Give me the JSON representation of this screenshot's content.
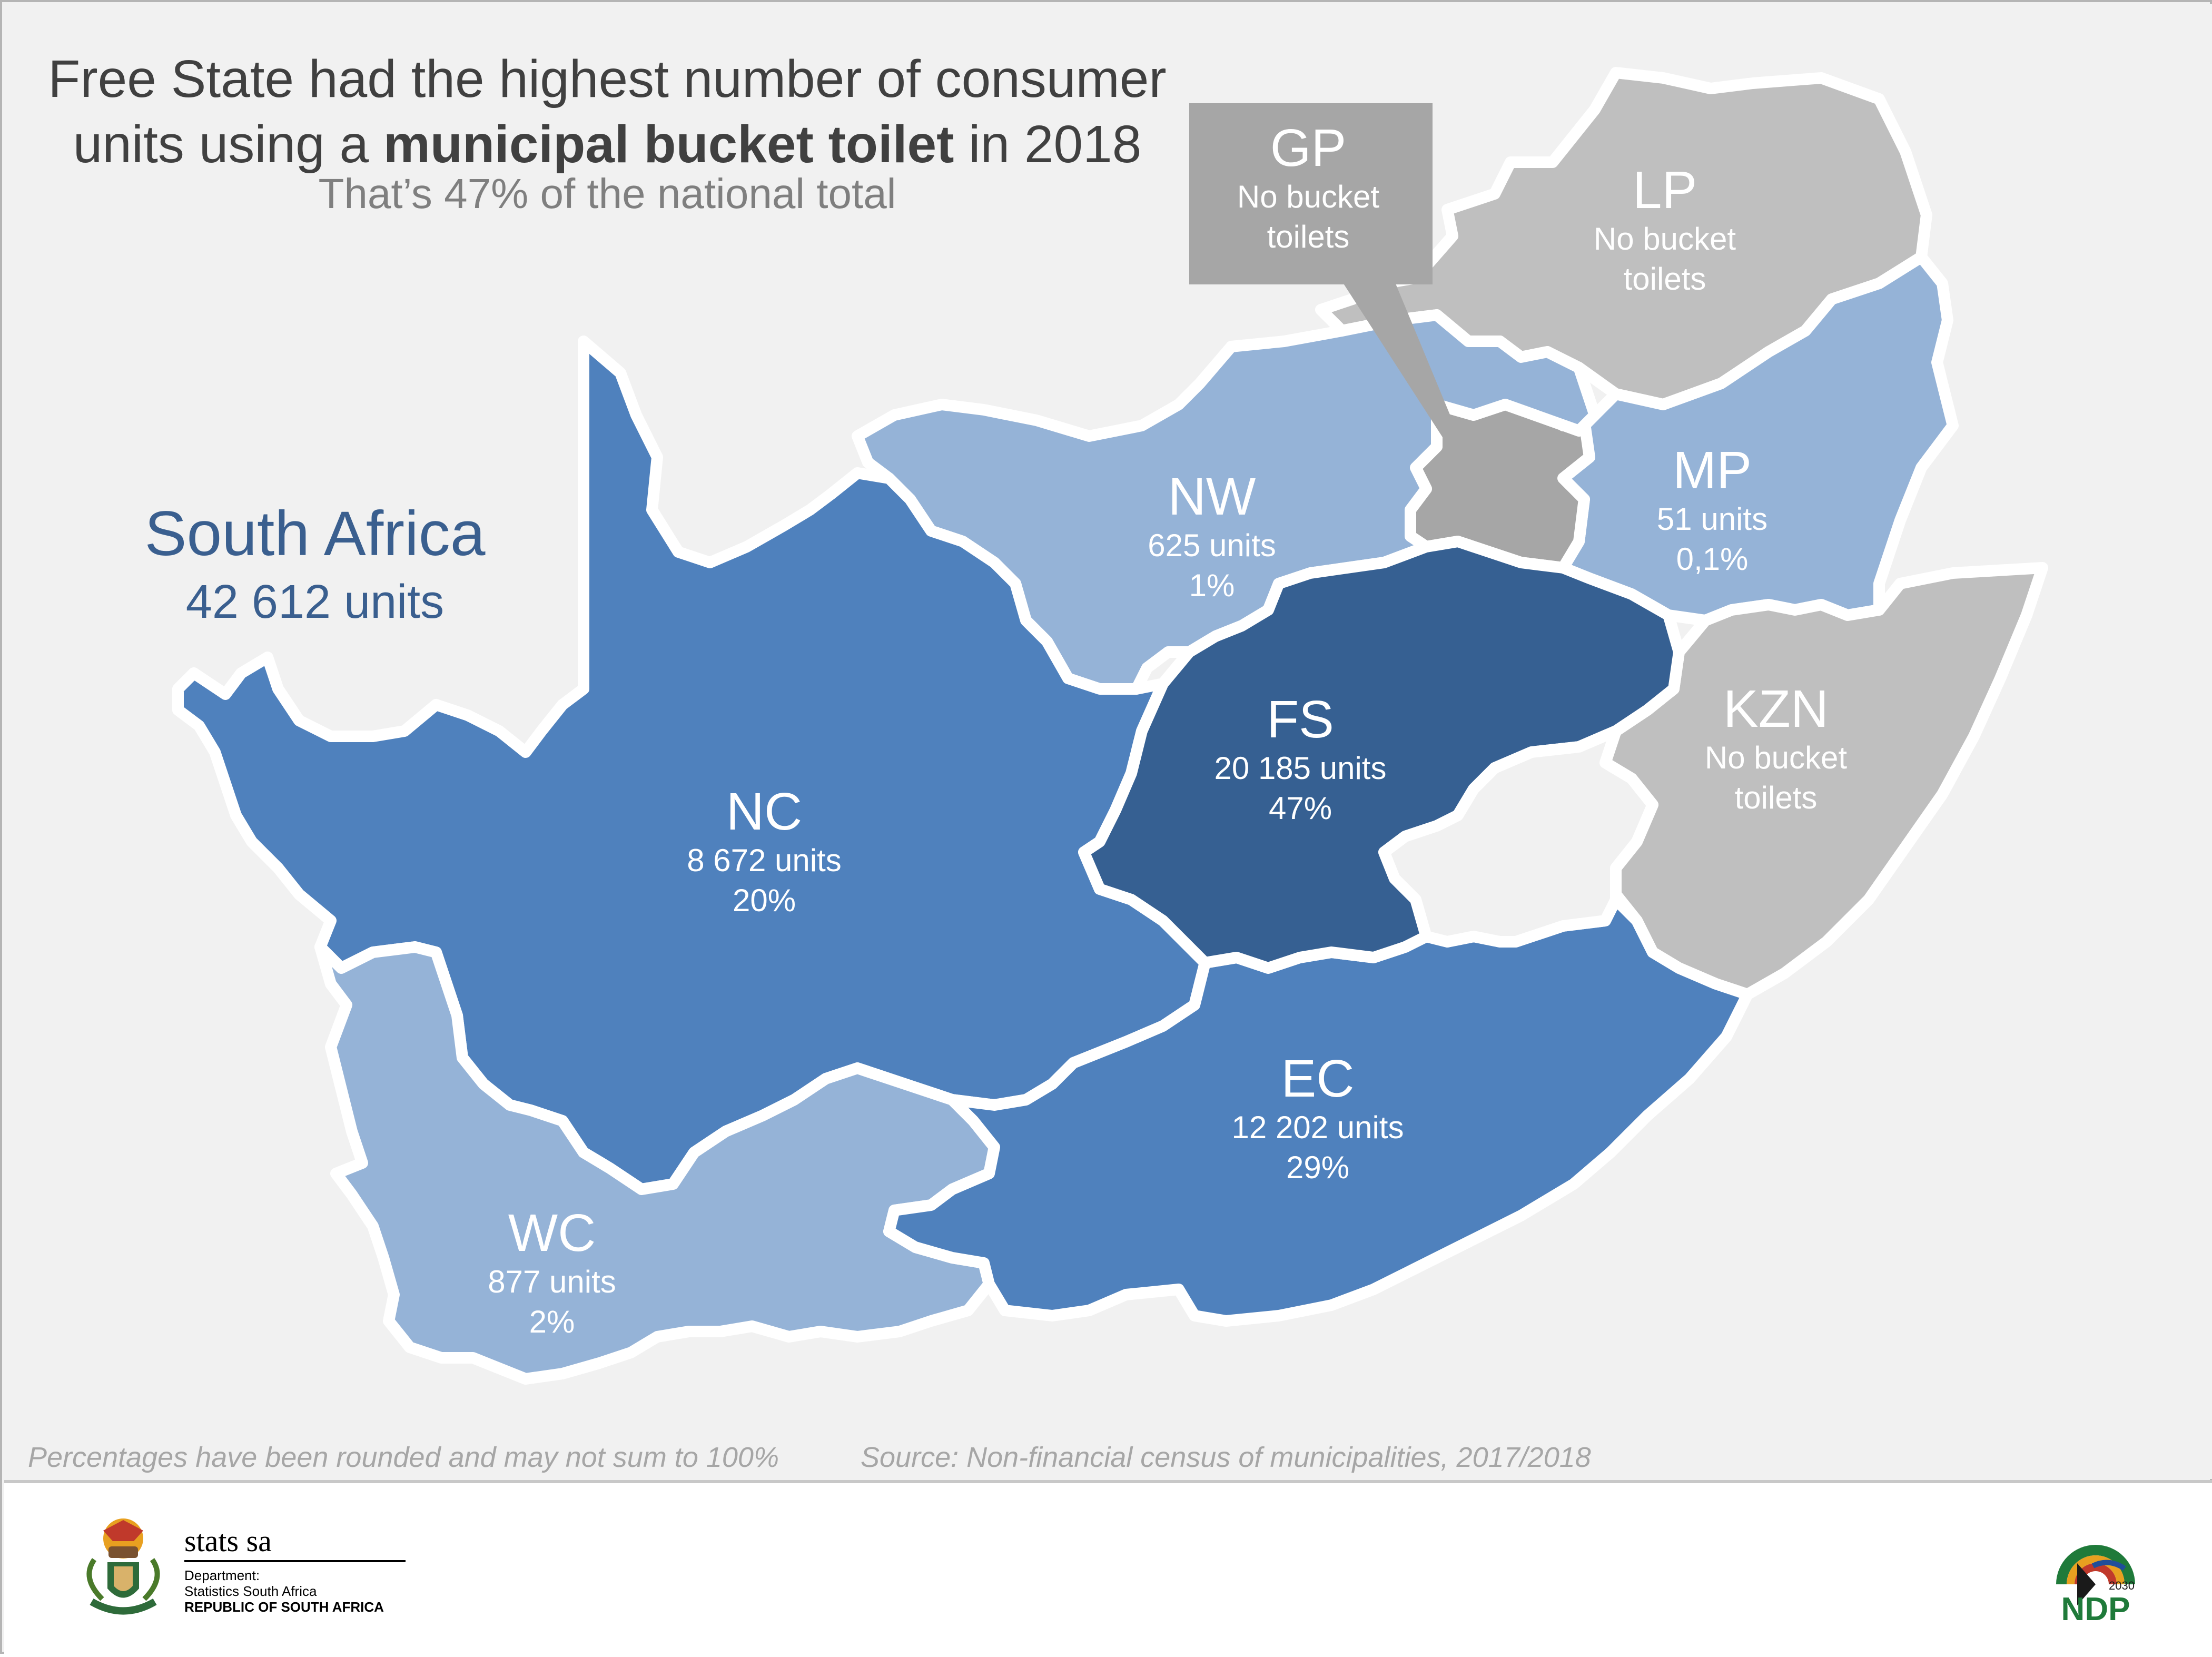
{
  "title": {
    "line1": "Free State had the highest number of consumer",
    "line2_pre": "units using a ",
    "line2_bold": "municipal bucket toilet",
    "line2_post": " in 2018",
    "subtitle": "That’s 47% of the national total"
  },
  "country": {
    "name": "South Africa",
    "total": "42 612 units",
    "color": "#3a5f8f"
  },
  "colors": {
    "none": "#bfbfbf",
    "gp": "#a6a6a6",
    "light_blue": "#95b3d7",
    "mid_blue": "#4f81bd",
    "dark_blue": "#366092",
    "lesotho": "#f1f1f1",
    "background": "#f1f1f1"
  },
  "provinces": [
    {
      "code": "NC",
      "units_text": "8 672 units",
      "share_text": "20%",
      "units": 8672,
      "share_pct": 20
    },
    {
      "code": "WC",
      "units_text": "877 units",
      "share_text": "2%",
      "units": 877,
      "share_pct": 2
    },
    {
      "code": "EC",
      "units_text": "12 202 units",
      "share_text": "29%",
      "units": 12202,
      "share_pct": 29
    },
    {
      "code": "FS",
      "units_text": "20 185 units",
      "share_text": "47%",
      "units": 20185,
      "share_pct": 47
    },
    {
      "code": "NW",
      "units_text": "625 units",
      "share_text": "1%",
      "units": 625,
      "share_pct": 1
    },
    {
      "code": "MP",
      "units_text": "51 units",
      "share_text": "0,1%",
      "units": 51,
      "share_pct": 0.1
    },
    {
      "code": "LP",
      "line1": "No bucket",
      "line2": "toilets",
      "units": 0
    },
    {
      "code": "KZN",
      "line1": "No bucket",
      "line2": "toilets",
      "units": 0
    },
    {
      "code": "GP",
      "line1": "No bucket",
      "line2": "toilets",
      "units": 0
    }
  ],
  "footer": {
    "note": "Percentages have been rounded and may not sum to 100%",
    "source": "Source: Non-financial census of municipalities, 2017/2018",
    "org_brand": "stats sa",
    "org_line1": "Department:",
    "org_line2": "Statistics South Africa",
    "org_line3": "REPUBLIC OF SOUTH AFRICA",
    "ndp_year": "2030",
    "ndp_text": "NDP"
  }
}
